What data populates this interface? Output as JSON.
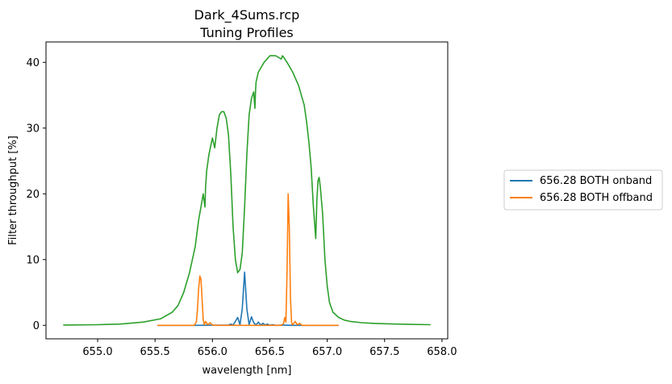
{
  "chart_data": {
    "type": "line",
    "title": "Dark_4Sums.rcp",
    "subtitle": "Tuning Profiles",
    "xlabel": "wavelength [nm]",
    "ylabel": "Filter throughput [%]",
    "xlim": [
      654.55,
      658.05
    ],
    "ylim": [
      -2.05,
      43.1
    ],
    "xticks": [
      "655.0",
      "655.5",
      "656.0",
      "656.5",
      "657.0",
      "657.5",
      "658.0"
    ],
    "yticks": [
      "0",
      "10",
      "20",
      "30",
      "40"
    ],
    "grid": false,
    "legend": {
      "placement": "outside-right",
      "entries": [
        "656.28 BOTH onband",
        "656.28 BOTH offband"
      ]
    },
    "series": [
      {
        "name": "656.28 BOTH onband",
        "color": "#1f77b4",
        "x": [
          655.52,
          655.85,
          656.14,
          656.16,
          656.18,
          656.2,
          656.22,
          656.24,
          656.26,
          656.28,
          656.3,
          656.32,
          656.34,
          656.36,
          656.38,
          656.4,
          656.42,
          656.44,
          656.46,
          656.48,
          656.5,
          656.52,
          656.56,
          656.6,
          656.7,
          657.1
        ],
        "y": [
          0,
          0,
          0.05,
          0.2,
          0.05,
          0.6,
          1.2,
          0.1,
          2.5,
          8.1,
          2.5,
          0.1,
          1.3,
          0.4,
          0.05,
          0.5,
          0.05,
          0.3,
          0.05,
          0.2,
          0,
          0.1,
          0,
          0.05,
          0,
          0
        ]
      },
      {
        "name": "656.28 BOTH offband",
        "color": "#ff7f0e",
        "x": [
          655.52,
          655.84,
          655.86,
          655.87,
          655.88,
          655.89,
          655.9,
          655.91,
          655.92,
          655.93,
          655.94,
          655.96,
          655.98,
          656.0,
          656.02,
          656.6,
          656.62,
          656.63,
          656.64,
          656.65,
          656.66,
          656.67,
          656.68,
          656.69,
          656.7,
          656.72,
          656.74,
          656.76,
          656.78,
          657.1
        ],
        "y": [
          0,
          0,
          0.5,
          2.5,
          5.5,
          7.5,
          7.0,
          4.0,
          0.8,
          0.1,
          0.6,
          0.1,
          0.4,
          0.05,
          0,
          0,
          0.3,
          1.2,
          0.5,
          8.0,
          20.0,
          15.0,
          4.0,
          0.3,
          0.1,
          0.6,
          0.1,
          0.3,
          0,
          0
        ]
      },
      {
        "color": "#2ca02c",
        "x": [
          654.7,
          655.0,
          655.2,
          655.4,
          655.55,
          655.65,
          655.7,
          655.75,
          655.8,
          655.85,
          655.88,
          655.9,
          655.92,
          655.935,
          655.94,
          655.95,
          655.97,
          656.0,
          656.02,
          656.04,
          656.06,
          656.08,
          656.1,
          656.12,
          656.14,
          656.16,
          656.18,
          656.2,
          656.22,
          656.24,
          656.26,
          656.28,
          656.3,
          656.32,
          656.34,
          656.36,
          656.37,
          656.375,
          656.38,
          656.4,
          656.45,
          656.5,
          656.55,
          656.6,
          656.61,
          656.62,
          656.65,
          656.7,
          656.75,
          656.8,
          656.82,
          656.84,
          656.86,
          656.88,
          656.9,
          656.91,
          656.92,
          656.93,
          656.94,
          656.96,
          656.98,
          657.0,
          657.02,
          657.05,
          657.1,
          657.15,
          657.2,
          657.3,
          657.4,
          657.5,
          657.6,
          657.9
        ],
        "y": [
          0.05,
          0.1,
          0.2,
          0.5,
          1.0,
          2.0,
          3.0,
          5.0,
          8.0,
          12.0,
          16.0,
          18.0,
          20.0,
          18.0,
          21.0,
          23.5,
          26.0,
          28.5,
          27.0,
          30.0,
          32.0,
          32.5,
          32.5,
          31.5,
          29.0,
          23.0,
          15.0,
          10.0,
          8.0,
          8.5,
          11.0,
          18.0,
          26.0,
          32.0,
          34.5,
          35.5,
          33.0,
          35.5,
          37.0,
          38.5,
          40.0,
          41.0,
          41.0,
          40.5,
          41.0,
          40.8,
          40.0,
          38.5,
          36.5,
          33.5,
          31.0,
          28.0,
          24.0,
          18.0,
          13.2,
          19.0,
          22.0,
          22.5,
          21.0,
          17.0,
          10.0,
          6.0,
          3.5,
          2.0,
          1.2,
          0.8,
          0.6,
          0.4,
          0.3,
          0.25,
          0.2,
          0.1
        ]
      }
    ]
  }
}
